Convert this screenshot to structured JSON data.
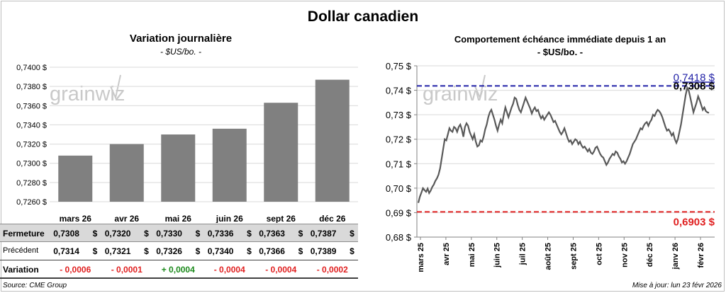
{
  "title": "Dollar canadien",
  "source": "Source: CME Group",
  "updated": "Mise à jour: lun 23 févr 2026",
  "watermark": "grainwiz",
  "table": {
    "rows": [
      {
        "label": "Fermeture",
        "kind": "close",
        "values": [
          "0,7308",
          "0,7320",
          "0,7330",
          "0,7336",
          "0,7363",
          "0,7387"
        ]
      },
      {
        "label": "Précédent",
        "kind": "prev",
        "values": [
          "0,7314",
          "0,7321",
          "0,7326",
          "0,7340",
          "0,7366",
          "0,7389"
        ]
      },
      {
        "label": "Variation",
        "kind": "var",
        "values": [
          "- 0,0006",
          "- 0,0001",
          "+ 0,0004",
          "- 0,0004",
          "- 0,0004",
          "- 0,0002"
        ]
      }
    ],
    "unit": "$"
  },
  "colors": {
    "bar": "#808080",
    "line": "#595959",
    "high": "#1f1fa6",
    "low": "#e02020",
    "pos": "#1c8a1c",
    "neg": "#e02020"
  },
  "chart_data": [
    {
      "type": "bar",
      "title": "Variation  journalière",
      "subtitle": "- $US/bo. -",
      "categories": [
        "mars 26",
        "avr 26",
        "mai 26",
        "juin 26",
        "sept 26",
        "déc 26"
      ],
      "values": [
        0.7308,
        0.732,
        0.733,
        0.7336,
        0.7363,
        0.7387
      ],
      "ylim": [
        0.726,
        0.74
      ],
      "yticks": [
        "0,7260 $",
        "0,7280 $",
        "0,7300 $",
        "0,7320 $",
        "0,7340 $",
        "0,7360 $",
        "0,7380 $",
        "0,7400 $"
      ],
      "grid": true
    },
    {
      "type": "line",
      "title": "Comportement échéance immédiate depuis 1 an",
      "subtitle": "- $US/bo. -",
      "ylim": [
        0.68,
        0.75
      ],
      "yticks": [
        "0,68 $",
        "0,69 $",
        "0,70 $",
        "0,71 $",
        "0,72 $",
        "0,73 $",
        "0,74 $",
        "0,75 $"
      ],
      "xticks": [
        "mars 25",
        "avr 25",
        "mai 25",
        "juin 25",
        "juil 25",
        "août 25",
        "sept 25",
        "oct 25",
        "nov 25",
        "déc 25",
        "janv 26",
        "févr 26"
      ],
      "high": {
        "value": 0.7418,
        "label": "0,7418  $"
      },
      "low": {
        "value": 0.6903,
        "label": "0,6903  $"
      },
      "last_label": "0,7308 $",
      "series": [
        {
          "name": "Échéance immédiate",
          "values": [
            0.694,
            0.6965,
            0.6982,
            0.7,
            0.6992,
            0.6985,
            0.6998,
            0.698,
            0.699,
            0.7005,
            0.7015,
            0.703,
            0.704,
            0.7055,
            0.708,
            0.712,
            0.716,
            0.72,
            0.7195,
            0.722,
            0.7245,
            0.7235,
            0.723,
            0.725,
            0.7245,
            0.723,
            0.725,
            0.726,
            0.724,
            0.721,
            0.725,
            0.7265,
            0.7255,
            0.723,
            0.7215,
            0.72,
            0.722,
            0.719,
            0.717,
            0.7175,
            0.7195,
            0.719,
            0.721,
            0.724,
            0.726,
            0.729,
            0.731,
            0.732,
            0.73,
            0.728,
            0.7255,
            0.7235,
            0.726,
            0.728,
            0.7265,
            0.73,
            0.733,
            0.731,
            0.729,
            0.731,
            0.733,
            0.7345,
            0.737,
            0.7365,
            0.734,
            0.732,
            0.731,
            0.733,
            0.735,
            0.737,
            0.7355,
            0.734,
            0.7325,
            0.7305,
            0.732,
            0.733,
            0.7315,
            0.732,
            0.73,
            0.7285,
            0.7295,
            0.728,
            0.729,
            0.73,
            0.731,
            0.73,
            0.7285,
            0.727,
            0.7275,
            0.726,
            0.7245,
            0.723,
            0.722,
            0.723,
            0.7245,
            0.7225,
            0.7205,
            0.719,
            0.7195,
            0.718,
            0.719,
            0.72,
            0.7195,
            0.718,
            0.719,
            0.7175,
            0.7165,
            0.717,
            0.716,
            0.715,
            0.716,
            0.7145,
            0.714,
            0.715,
            0.7165,
            0.717,
            0.7155,
            0.714,
            0.713,
            0.7125,
            0.711,
            0.7095,
            0.7105,
            0.712,
            0.713,
            0.714,
            0.7135,
            0.715,
            0.7145,
            0.713,
            0.712,
            0.7105,
            0.711,
            0.71,
            0.711,
            0.7125,
            0.714,
            0.716,
            0.718,
            0.719,
            0.72,
            0.7215,
            0.723,
            0.7245,
            0.724,
            0.7255,
            0.7265,
            0.727,
            0.7255,
            0.727,
            0.728,
            0.73,
            0.7295,
            0.731,
            0.732,
            0.7315,
            0.7305,
            0.729,
            0.727,
            0.725,
            0.7235,
            0.724,
            0.723,
            0.7215,
            0.7225,
            0.72,
            0.7185,
            0.72,
            0.723,
            0.726,
            0.73,
            0.734,
            0.738,
            0.741,
            0.7398,
            0.737,
            0.734,
            0.731,
            0.733,
            0.735,
            0.7375,
            0.736,
            0.734,
            0.732,
            0.733,
            0.7315,
            0.731,
            0.7308
          ]
        }
      ]
    }
  ]
}
